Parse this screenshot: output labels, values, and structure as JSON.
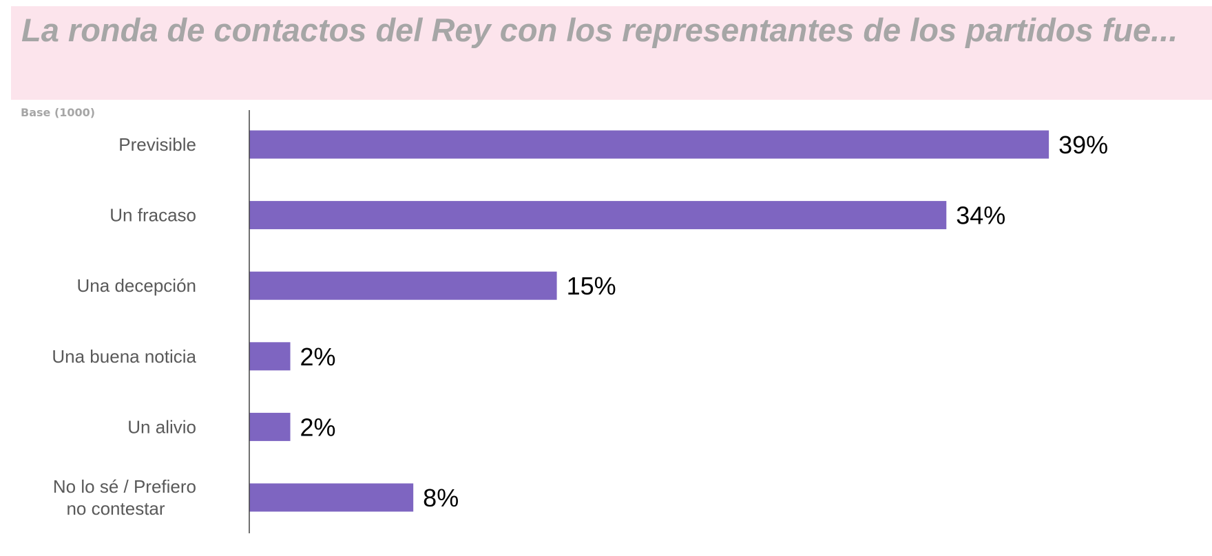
{
  "header": {
    "title": "La ronda de contactos del Rey con los representantes de los partidos fue...",
    "base_note": "Base (1000)"
  },
  "colors": {
    "title_band": "#fce4ec",
    "title_text": "#a6a6a6",
    "bar": "#7e65c1",
    "axis": "#404040",
    "category_text": "#595959",
    "value_text": "#000000"
  },
  "chart_data": {
    "type": "bar",
    "orientation": "horizontal",
    "categories": [
      [
        "Previsible"
      ],
      [
        "Un fracaso"
      ],
      [
        "Una decepción"
      ],
      [
        "Una buena noticia"
      ],
      [
        "Un alivio"
      ],
      [
        "No lo sé / Prefiero",
        "no contestar"
      ]
    ],
    "values": [
      39,
      34,
      15,
      2,
      2,
      8
    ],
    "value_labels": [
      "39%",
      "34%",
      "15%",
      "2%",
      "2%",
      "8%"
    ],
    "unit": "%",
    "xlim": [
      0,
      44
    ],
    "grid": false,
    "legend": "none"
  }
}
